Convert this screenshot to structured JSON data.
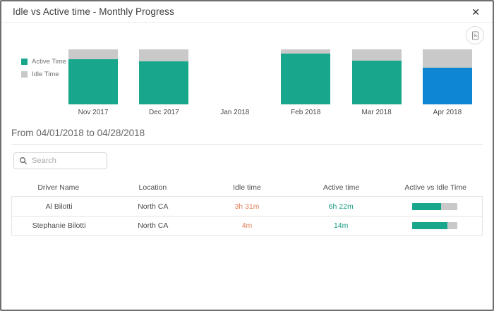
{
  "header": {
    "title": "Idle vs Active time - Monthly Progress",
    "close_icon": "✕"
  },
  "toolbar": {
    "export_icon": "export-image"
  },
  "chart_data": {
    "type": "bar",
    "stacked": true,
    "legend_position": "left",
    "categories": [
      "Nov 2017",
      "Dec 2017",
      "Jan 2018",
      "Feb 2018",
      "Mar 2018",
      "Apr 2018"
    ],
    "series": [
      {
        "name": "Active Time",
        "color": "#18A78C",
        "values_pct": [
          83,
          78,
          0,
          93,
          80,
          67
        ]
      },
      {
        "name": "Idle Time",
        "color": "#C9C9C9",
        "values_pct": [
          17,
          22,
          0,
          7,
          20,
          33
        ]
      }
    ],
    "no_data_categories": [
      "Jan 2018"
    ],
    "highlighted_category": "Apr 2018",
    "highlight_color": "#0E86D2"
  },
  "period": {
    "label": "From 04/01/2018 to 04/28/2018"
  },
  "search": {
    "placeholder": "Search",
    "value": ""
  },
  "table": {
    "columns": [
      "Driver Name",
      "Location",
      "Idle time",
      "Active time",
      "Active vs Idle Time"
    ],
    "rows": [
      {
        "driver": "Al Bilotti",
        "location": "North CA",
        "idle": "3h 31m",
        "active": "6h 22m",
        "active_pct": 64
      },
      {
        "driver": "Stephanie Bilotti",
        "location": "North CA",
        "idle": "4m",
        "active": "14m",
        "active_pct": 78
      }
    ]
  },
  "colors": {
    "active_teal": "#18A78C",
    "idle_gray": "#C9C9C9",
    "highlight_blue": "#0E86D2",
    "idle_text_orange": "#E2815C",
    "active_text_teal": "#169B82"
  }
}
